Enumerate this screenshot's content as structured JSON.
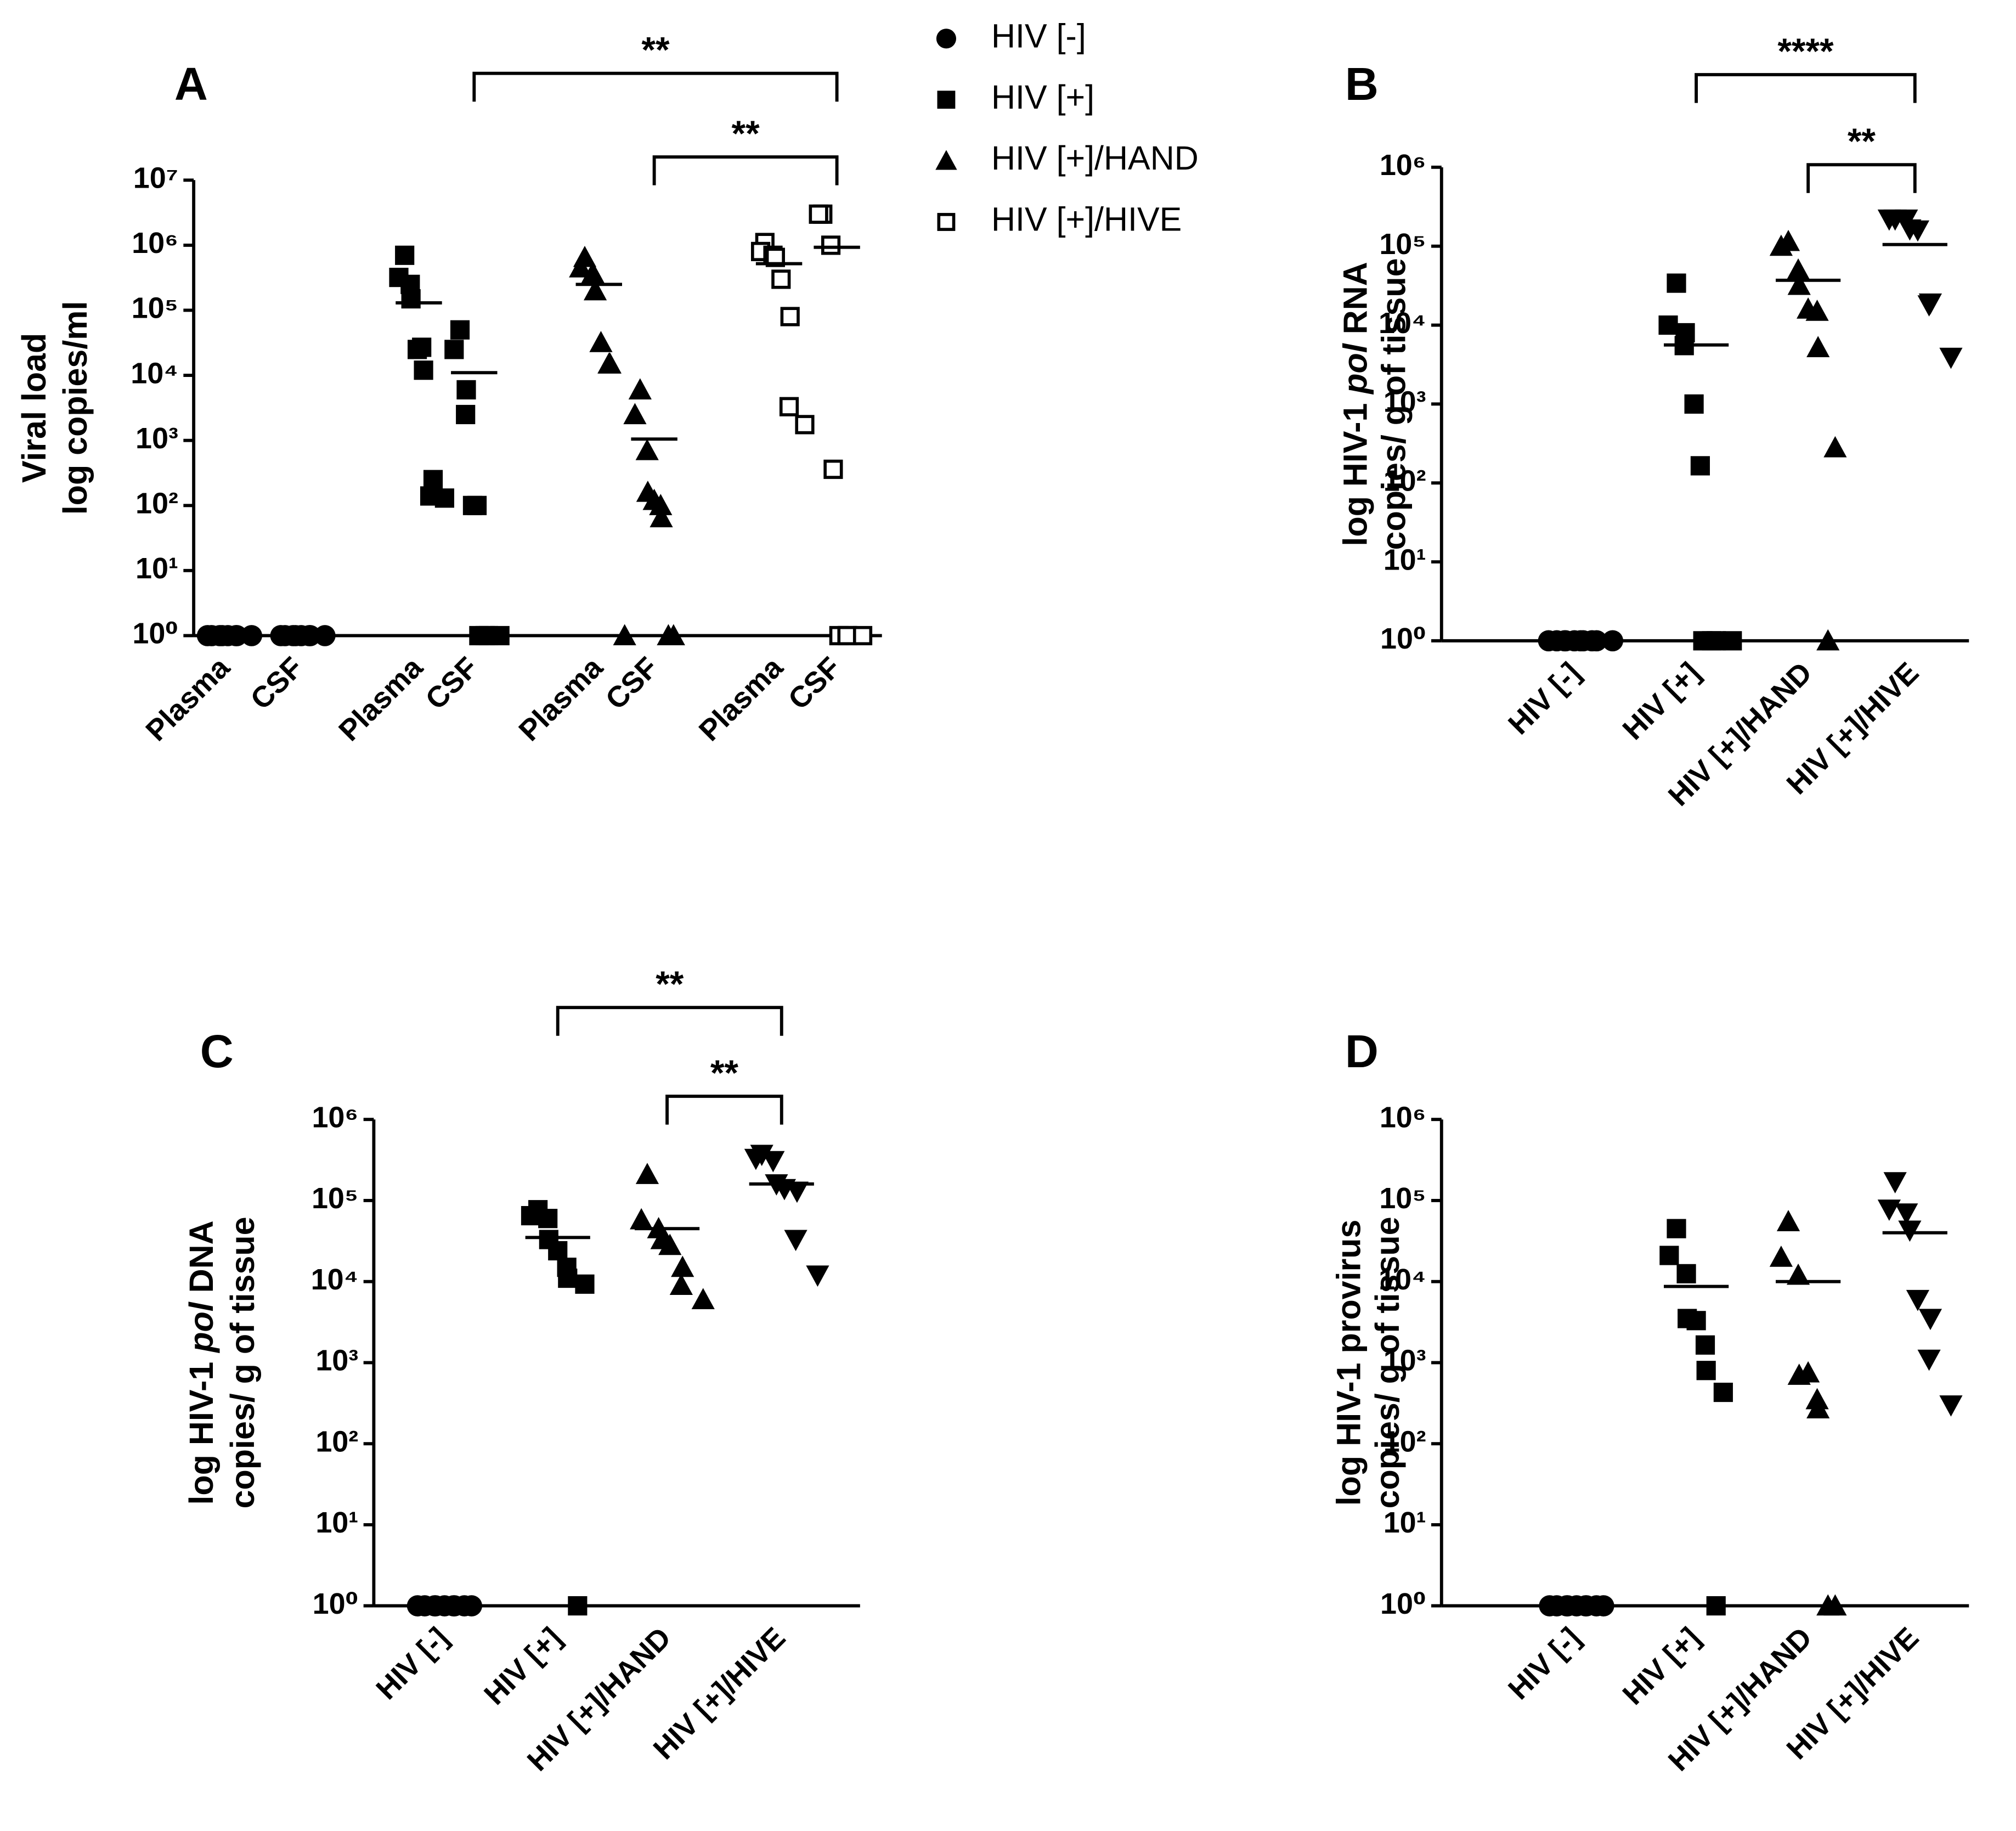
{
  "legend": [
    {
      "name": "HIV [-]",
      "marker": "circle"
    },
    {
      "name": "HIV [+]",
      "marker": "square"
    },
    {
      "name": "HIV [+]/HAND",
      "marker": "triangle"
    },
    {
      "name": "HIV [+]/HIVE",
      "marker": "open-square"
    }
  ],
  "chart_data": [
    {
      "type": "scatter",
      "panel": "A",
      "log": true,
      "ylabel": [
        [
          {
            "text": "Viral load",
            "italic": false
          }
        ],
        [
          {
            "text": "log copies/ml",
            "italic": false
          }
        ]
      ],
      "categories": [
        "Plasma",
        "CSF",
        "Plasma",
        "CSF",
        "Plasma",
        "CSF",
        "Plasma",
        "CSF"
      ],
      "ylim": [
        1,
        10000000
      ],
      "yticks": [
        {
          "value": 1,
          "label": "10⁰"
        },
        {
          "value": 10,
          "label": "10¹"
        },
        {
          "value": 100,
          "label": "10²"
        },
        {
          "value": 1000,
          "label": "10³"
        },
        {
          "value": 10000,
          "label": "10⁴"
        },
        {
          "value": 100000,
          "label": "10⁵"
        },
        {
          "value": 1000000,
          "label": "10⁶"
        },
        {
          "value": 10000000,
          "label": "10⁷"
        }
      ],
      "columns": [
        {
          "category": 0,
          "marker": "circle",
          "values": [
            1,
            1,
            1,
            1,
            1,
            1,
            1,
            1
          ]
        },
        {
          "category": 1,
          "marker": "circle",
          "values": [
            1,
            1,
            1,
            1,
            1,
            1,
            1,
            1
          ]
        },
        {
          "category": 2,
          "marker": "square",
          "values": [
            700000,
            320000,
            150000,
            250000,
            25000,
            27000,
            12000,
            250,
            140,
            130
          ],
          "median": 130000
        },
        {
          "category": 3,
          "marker": "square",
          "values": [
            50000,
            25000,
            6000,
            2500,
            100,
            100,
            1,
            1,
            1,
            1
          ],
          "median": 11000
        },
        {
          "category": 4,
          "marker": "triangle",
          "values": [
            650000,
            450000,
            370000,
            200000,
            32000,
            15000,
            15000,
            1
          ],
          "median": 250000
        },
        {
          "category": 5,
          "marker": "triangle",
          "values": [
            6000,
            2500,
            700,
            160,
            120,
            100,
            65,
            1,
            1
          ],
          "median": 1050
        },
        {
          "category": 6,
          "marker": "open-square",
          "values": [
            1100000,
            800000,
            700000,
            650000,
            300000,
            80000,
            3300,
            1750
          ],
          "median": 520000
        },
        {
          "category": 7,
          "marker": "open-square",
          "values": [
            3000000,
            3000000,
            1000000,
            360,
            1,
            1,
            1,
            1
          ],
          "median": 930000
        }
      ],
      "brackets": [
        {
          "label": "**",
          "from": 3,
          "to": 7
        },
        {
          "label": "**",
          "from": 5,
          "to": 7
        }
      ]
    },
    {
      "type": "scatter",
      "panel": "B",
      "log": true,
      "ylabel": [
        [
          {
            "text": "log HIV-1 ",
            "italic": false
          },
          {
            "text": "pol",
            "italic": true
          },
          {
            "text": " RNA",
            "italic": false
          }
        ],
        [
          {
            "text": "copies/ g of tissue",
            "italic": false
          }
        ]
      ],
      "categories": [
        "HIV [-]",
        "HIV [+]",
        "HIV [+]/HAND",
        "HIV [+]/HIVE"
      ],
      "ylim": [
        1,
        1000000
      ],
      "yticks": [
        {
          "value": 1,
          "label": "10⁰"
        },
        {
          "value": 10,
          "label": "10¹"
        },
        {
          "value": 100,
          "label": "10²"
        },
        {
          "value": 1000,
          "label": "10³"
        },
        {
          "value": 10000,
          "label": "10⁴"
        },
        {
          "value": 100000,
          "label": "10⁵"
        },
        {
          "value": 1000000,
          "label": "10⁶"
        }
      ],
      "columns": [
        {
          "category": 0,
          "marker": "circle",
          "values": [
            1,
            1,
            1,
            1,
            1,
            1,
            1,
            1,
            1,
            1
          ]
        },
        {
          "category": 1,
          "marker": "square",
          "values": [
            34000,
            10000,
            8000,
            5500,
            1000,
            165,
            1,
            1,
            1,
            1
          ],
          "median": 5600
        },
        {
          "category": 2,
          "marker": "triangle",
          "values": [
            115000,
            100000,
            50000,
            32000,
            16000,
            15000,
            5200,
            280,
            1
          ],
          "median": 37000
        },
        {
          "category": 3,
          "marker": "inverted-triangle",
          "values": [
            220000,
            220000,
            220000,
            165000,
            160000,
            19000,
            18000,
            3900
          ],
          "median": 105000
        }
      ],
      "brackets": [
        {
          "label": "****",
          "from": 1,
          "to": 3
        },
        {
          "label": "**",
          "from": 2,
          "to": 3
        }
      ]
    },
    {
      "type": "scatter",
      "panel": "C",
      "log": true,
      "ylabel": [
        [
          {
            "text": "log HIV-1 ",
            "italic": false
          },
          {
            "text": "pol",
            "italic": true
          },
          {
            "text": " DNA",
            "italic": false
          }
        ],
        [
          {
            "text": "copies/ g of tissue",
            "italic": false
          }
        ]
      ],
      "categories": [
        "HIV [-]",
        "HIV [+]",
        "HIV [+]/HAND",
        "HIV [+]/HIVE"
      ],
      "ylim": [
        1,
        1000000
      ],
      "yticks": [
        {
          "value": 1,
          "label": "10⁰"
        },
        {
          "value": 10,
          "label": "10¹"
        },
        {
          "value": 100,
          "label": "10²"
        },
        {
          "value": 1000,
          "label": "10³"
        },
        {
          "value": 10000,
          "label": "10⁴"
        },
        {
          "value": 100000,
          "label": "10⁵"
        },
        {
          "value": 1000000,
          "label": "10⁶"
        }
      ],
      "columns": [
        {
          "category": 0,
          "marker": "circle",
          "values": [
            1,
            1,
            1,
            1,
            1,
            1,
            1,
            1,
            1
          ]
        },
        {
          "category": 1,
          "marker": "square",
          "values": [
            77000,
            65000,
            60000,
            33000,
            24000,
            15000,
            11000,
            9300,
            1
          ],
          "median": 35000
        },
        {
          "category": 2,
          "marker": "triangle",
          "values": [
            210000,
            58000,
            45000,
            33000,
            28000,
            15000,
            9000,
            6000
          ],
          "median": 45000
        },
        {
          "category": 3,
          "marker": "inverted-triangle",
          "values": [
            370000,
            330000,
            310000,
            160000,
            140000,
            130000,
            33000,
            12000
          ],
          "median": 160000
        }
      ],
      "brackets": [
        {
          "label": "**",
          "from": 1,
          "to": 3
        },
        {
          "label": "**",
          "from": 2,
          "to": 3
        }
      ]
    },
    {
      "type": "scatter",
      "panel": "D",
      "log": true,
      "ylabel": [
        [
          {
            "text": "log HIV-1 provirus",
            "italic": false
          }
        ],
        [
          {
            "text": "copies/ g of tissue",
            "italic": false
          }
        ]
      ],
      "categories": [
        "HIV [-]",
        "HIV [+]",
        "HIV [+]/HAND",
        "HIV [+]/HIVE"
      ],
      "ylim": [
        1,
        1000000
      ],
      "yticks": [
        {
          "value": 1,
          "label": "10⁰"
        },
        {
          "value": 10,
          "label": "10¹"
        },
        {
          "value": 100,
          "label": "10²"
        },
        {
          "value": 1000,
          "label": "10³"
        },
        {
          "value": 10000,
          "label": "10⁴"
        },
        {
          "value": 100000,
          "label": "10⁵"
        },
        {
          "value": 1000000,
          "label": "10⁶"
        }
      ],
      "columns": [
        {
          "category": 0,
          "marker": "circle",
          "values": [
            1,
            1,
            1,
            1,
            1,
            1,
            1,
            1,
            1
          ]
        },
        {
          "category": 1,
          "marker": "square",
          "values": [
            45000,
            21000,
            12500,
            3500,
            3300,
            1650,
            800,
            430,
            1
          ],
          "median": 8700
        },
        {
          "category": 2,
          "marker": "triangle",
          "values": [
            55000,
            20000,
            12000,
            700,
            750,
            350,
            270,
            1,
            1
          ],
          "median": 10000
        },
        {
          "category": 3,
          "marker": "inverted-triangle",
          "values": [
            170000,
            78000,
            70000,
            43000,
            6000,
            3500,
            1100,
            300
          ],
          "median": 40000
        }
      ],
      "brackets": []
    }
  ]
}
